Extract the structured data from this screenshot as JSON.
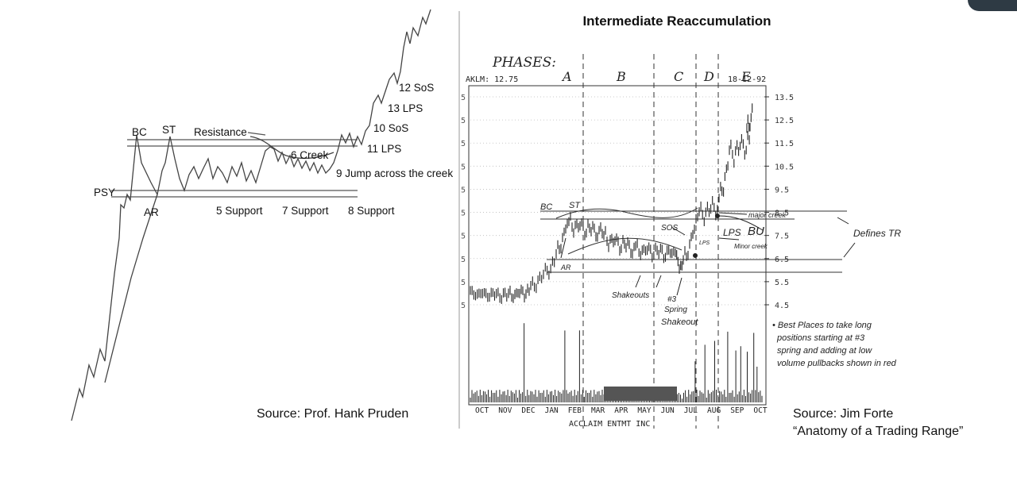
{
  "corner_color": "#2e3a44",
  "left_chart": {
    "labels": {
      "psy": "PSY",
      "bc": "BC",
      "st": "ST",
      "ar": "AR",
      "resistance": "Resistance",
      "creek": "6 Creek",
      "jump": "9 Jump across the creek",
      "support5": "5 Support",
      "support7": "7 Support",
      "support8": "8 Support",
      "lps11": "11 LPS",
      "sos10": "10 SoS",
      "lps13": "13 LPS",
      "sos12": "12 SoS"
    },
    "source": "Source: Prof. Hank Pruden"
  },
  "right_chart": {
    "title": "Intermediate Reaccumulation",
    "phases_label": "PHASES:",
    "phases": [
      "A",
      "B",
      "C",
      "D",
      "E"
    ],
    "ticker": "AKLM: 12.75",
    "date": "18-12-92",
    "footer": "ACCLAIM ENTMT INC",
    "months": [
      "OCT",
      "NOV",
      "DEC",
      "JAN",
      "FEB",
      "MAR",
      "APR",
      "MAY",
      "JUN",
      "JUL",
      "AUG",
      "SEP",
      "OCT"
    ],
    "y_ticks": [
      "13.5",
      "12.5",
      "11.5",
      "10.5",
      "9.5",
      "8.5",
      "7.5",
      "6.5",
      "5.5",
      "4.5"
    ],
    "left_tick_fragments": [
      "5",
      "5",
      "5",
      "5",
      "5",
      "5",
      "5",
      "5",
      "5",
      "5"
    ],
    "annotations": {
      "bc": "BC",
      "st": "ST",
      "ar": "AR",
      "sos": "SOS",
      "lps": "LPS",
      "bu": "BU",
      "lps_small": "LPS",
      "major_creek": "major creek",
      "minor_creek": "Minor creek",
      "defines_tr": "Defines TR",
      "shakeouts": "Shakeouts",
      "spring_no": "#3",
      "spring": "Spring",
      "shakeout": "Shakeout"
    },
    "notes": [
      "• Best Places to take long",
      "positions starting at #3",
      "spring and adding at low",
      "volume pullbacks shown in red"
    ],
    "source_line1": "Source: Jim Forte",
    "source_line2": "“Anatomy of a Trading Range”"
  }
}
